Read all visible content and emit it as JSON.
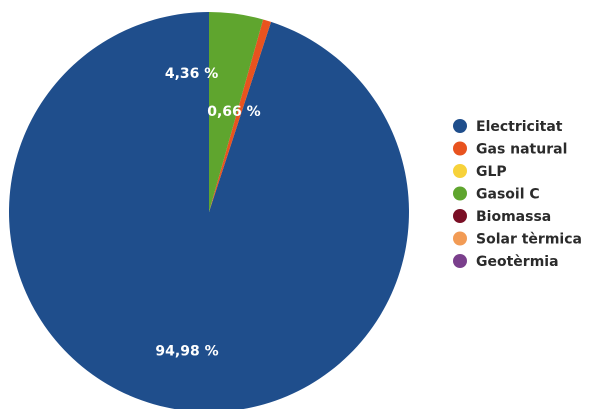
{
  "chart_data": {
    "type": "pie",
    "title": "",
    "labels": [
      "Electricitat",
      "Gas natural",
      "GLP",
      "Gasoil C",
      "Biomassa",
      "Solar tèrmica",
      "Geotèrmia"
    ],
    "values": [
      94.98,
      0.66,
      0,
      4.36,
      0,
      0,
      0
    ],
    "value_labels": [
      "94,98 %",
      "0,66 %",
      "",
      "4,36 %",
      "",
      "",
      ""
    ],
    "colors": [
      "#1f4e8c",
      "#e8531f",
      "#f7d23a",
      "#5fa52e",
      "#7a0f25",
      "#f29b55",
      "#7a3f8c"
    ],
    "start_angle_deg": 0,
    "direction": "counterclockwise",
    "legend_position": "right"
  }
}
